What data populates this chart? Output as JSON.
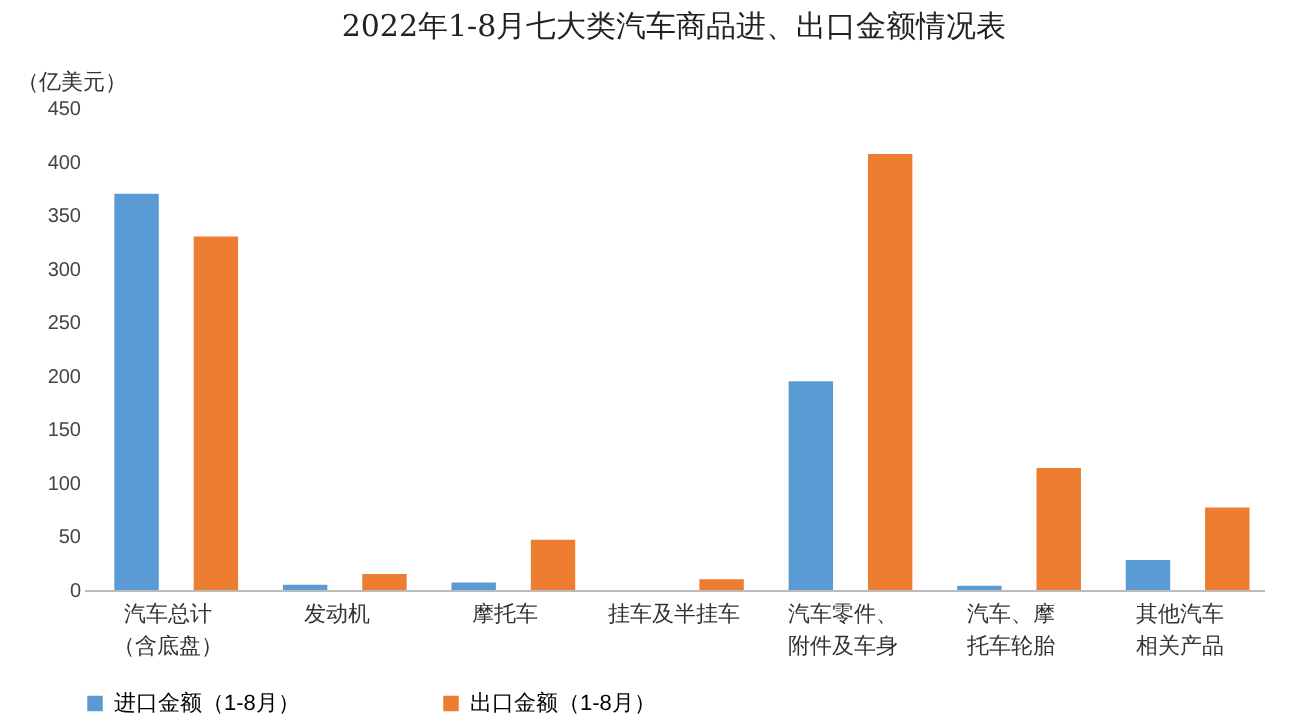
{
  "chart_data": {
    "type": "bar",
    "title": "2022年1-8月七大类汽车商品进、出口金额情况表",
    "ylabel": "（亿美元）",
    "categories": [
      "汽车总计（含底盘）",
      "发动机",
      "摩托车",
      "挂车及半挂车",
      "汽车零件、附件及车身",
      "汽车、摩托车轮胎",
      "其他汽车相关产品"
    ],
    "series": [
      {
        "name": "进口金额（1-8月）",
        "color": "#5b9bd5",
        "values": [
          370,
          5,
          7,
          0,
          195,
          4,
          28
        ]
      },
      {
        "name": "出口金额（1-8月）",
        "color": "#ed7d31",
        "values": [
          330,
          15,
          47,
          10,
          407,
          114,
          77
        ]
      }
    ],
    "ylim": [
      0,
      450
    ],
    "yticks": [
      0,
      50,
      100,
      150,
      200,
      250,
      300,
      350,
      400,
      450
    ],
    "grid": false,
    "legend": "bottom"
  }
}
